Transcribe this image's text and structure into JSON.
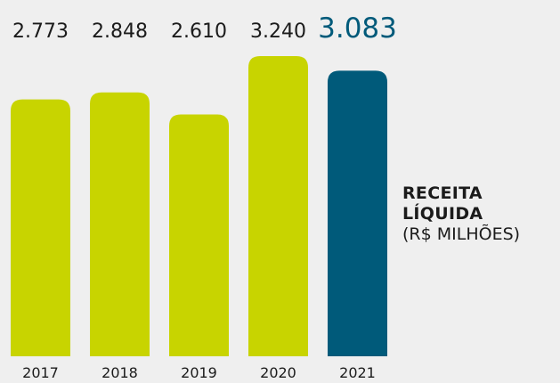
{
  "chart_data": {
    "type": "bar",
    "title": "RECEITA LÍQUIDA",
    "subtitle": "(R$ MILHÕES)",
    "categories": [
      "2017",
      "2018",
      "2019",
      "2020",
      "2021"
    ],
    "values": [
      2773,
      2848,
      2610,
      3240,
      3083
    ],
    "value_labels": [
      "2.773",
      "2.848",
      "2.610",
      "3.240",
      "3.083"
    ],
    "colors": [
      "#c8d400",
      "#c8d400",
      "#c8d400",
      "#c8d400",
      "#005a7a"
    ],
    "label_colors": [
      "#1b1b1b",
      "#1b1b1b",
      "#1b1b1b",
      "#1b1b1b",
      "#005a7a"
    ]
  }
}
